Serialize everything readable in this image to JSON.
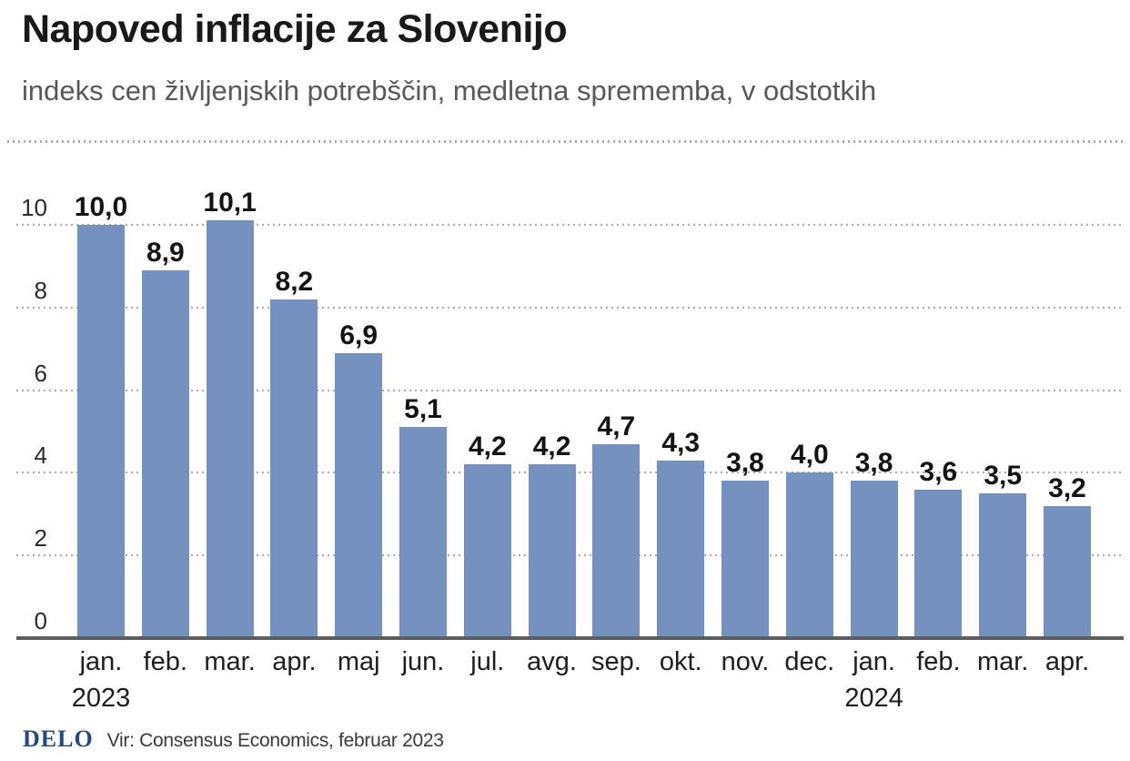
{
  "header": {
    "title": "Napoved inflacije za Slovenijo",
    "subtitle": "indeks cen življenjskih potrebščin, medletna sprememba, v odstotkih"
  },
  "footer": {
    "logo": "DELO",
    "source": "Vir: Consensus Economics, februar 2023"
  },
  "chart_data": {
    "type": "bar",
    "title": "Napoved inflacije za Slovenijo",
    "subtitle": "indeks cen življenjskih potrebščin, medletna sprememba, v odstotkih",
    "categories": [
      "jan.",
      "feb.",
      "mar.",
      "apr.",
      "maj",
      "jun.",
      "jul.",
      "avg.",
      "sep.",
      "okt.",
      "nov.",
      "dec.",
      "jan.",
      "feb.",
      "mar.",
      "apr."
    ],
    "values": [
      10.0,
      8.9,
      10.1,
      8.2,
      6.9,
      5.1,
      4.2,
      4.2,
      4.7,
      4.3,
      3.8,
      4.0,
      3.8,
      3.6,
      3.5,
      3.2
    ],
    "value_labels": [
      "10,0",
      "8,9",
      "10,1",
      "8,2",
      "6,9",
      "5,1",
      "4,2",
      "4,2",
      "4,7",
      "4,3",
      "3,8",
      "4,0",
      "3,8",
      "3,6",
      "3,5",
      "3,2"
    ],
    "year_labels": [
      {
        "index": 0,
        "label": "2023"
      },
      {
        "index": 12,
        "label": "2024"
      }
    ],
    "y_ticks": [
      0,
      2,
      4,
      6,
      8,
      10
    ],
    "ylim": [
      0,
      10
    ],
    "xlabel": "",
    "ylabel": "",
    "grid": true,
    "legend": "none",
    "bar_color": "#7591c0"
  }
}
